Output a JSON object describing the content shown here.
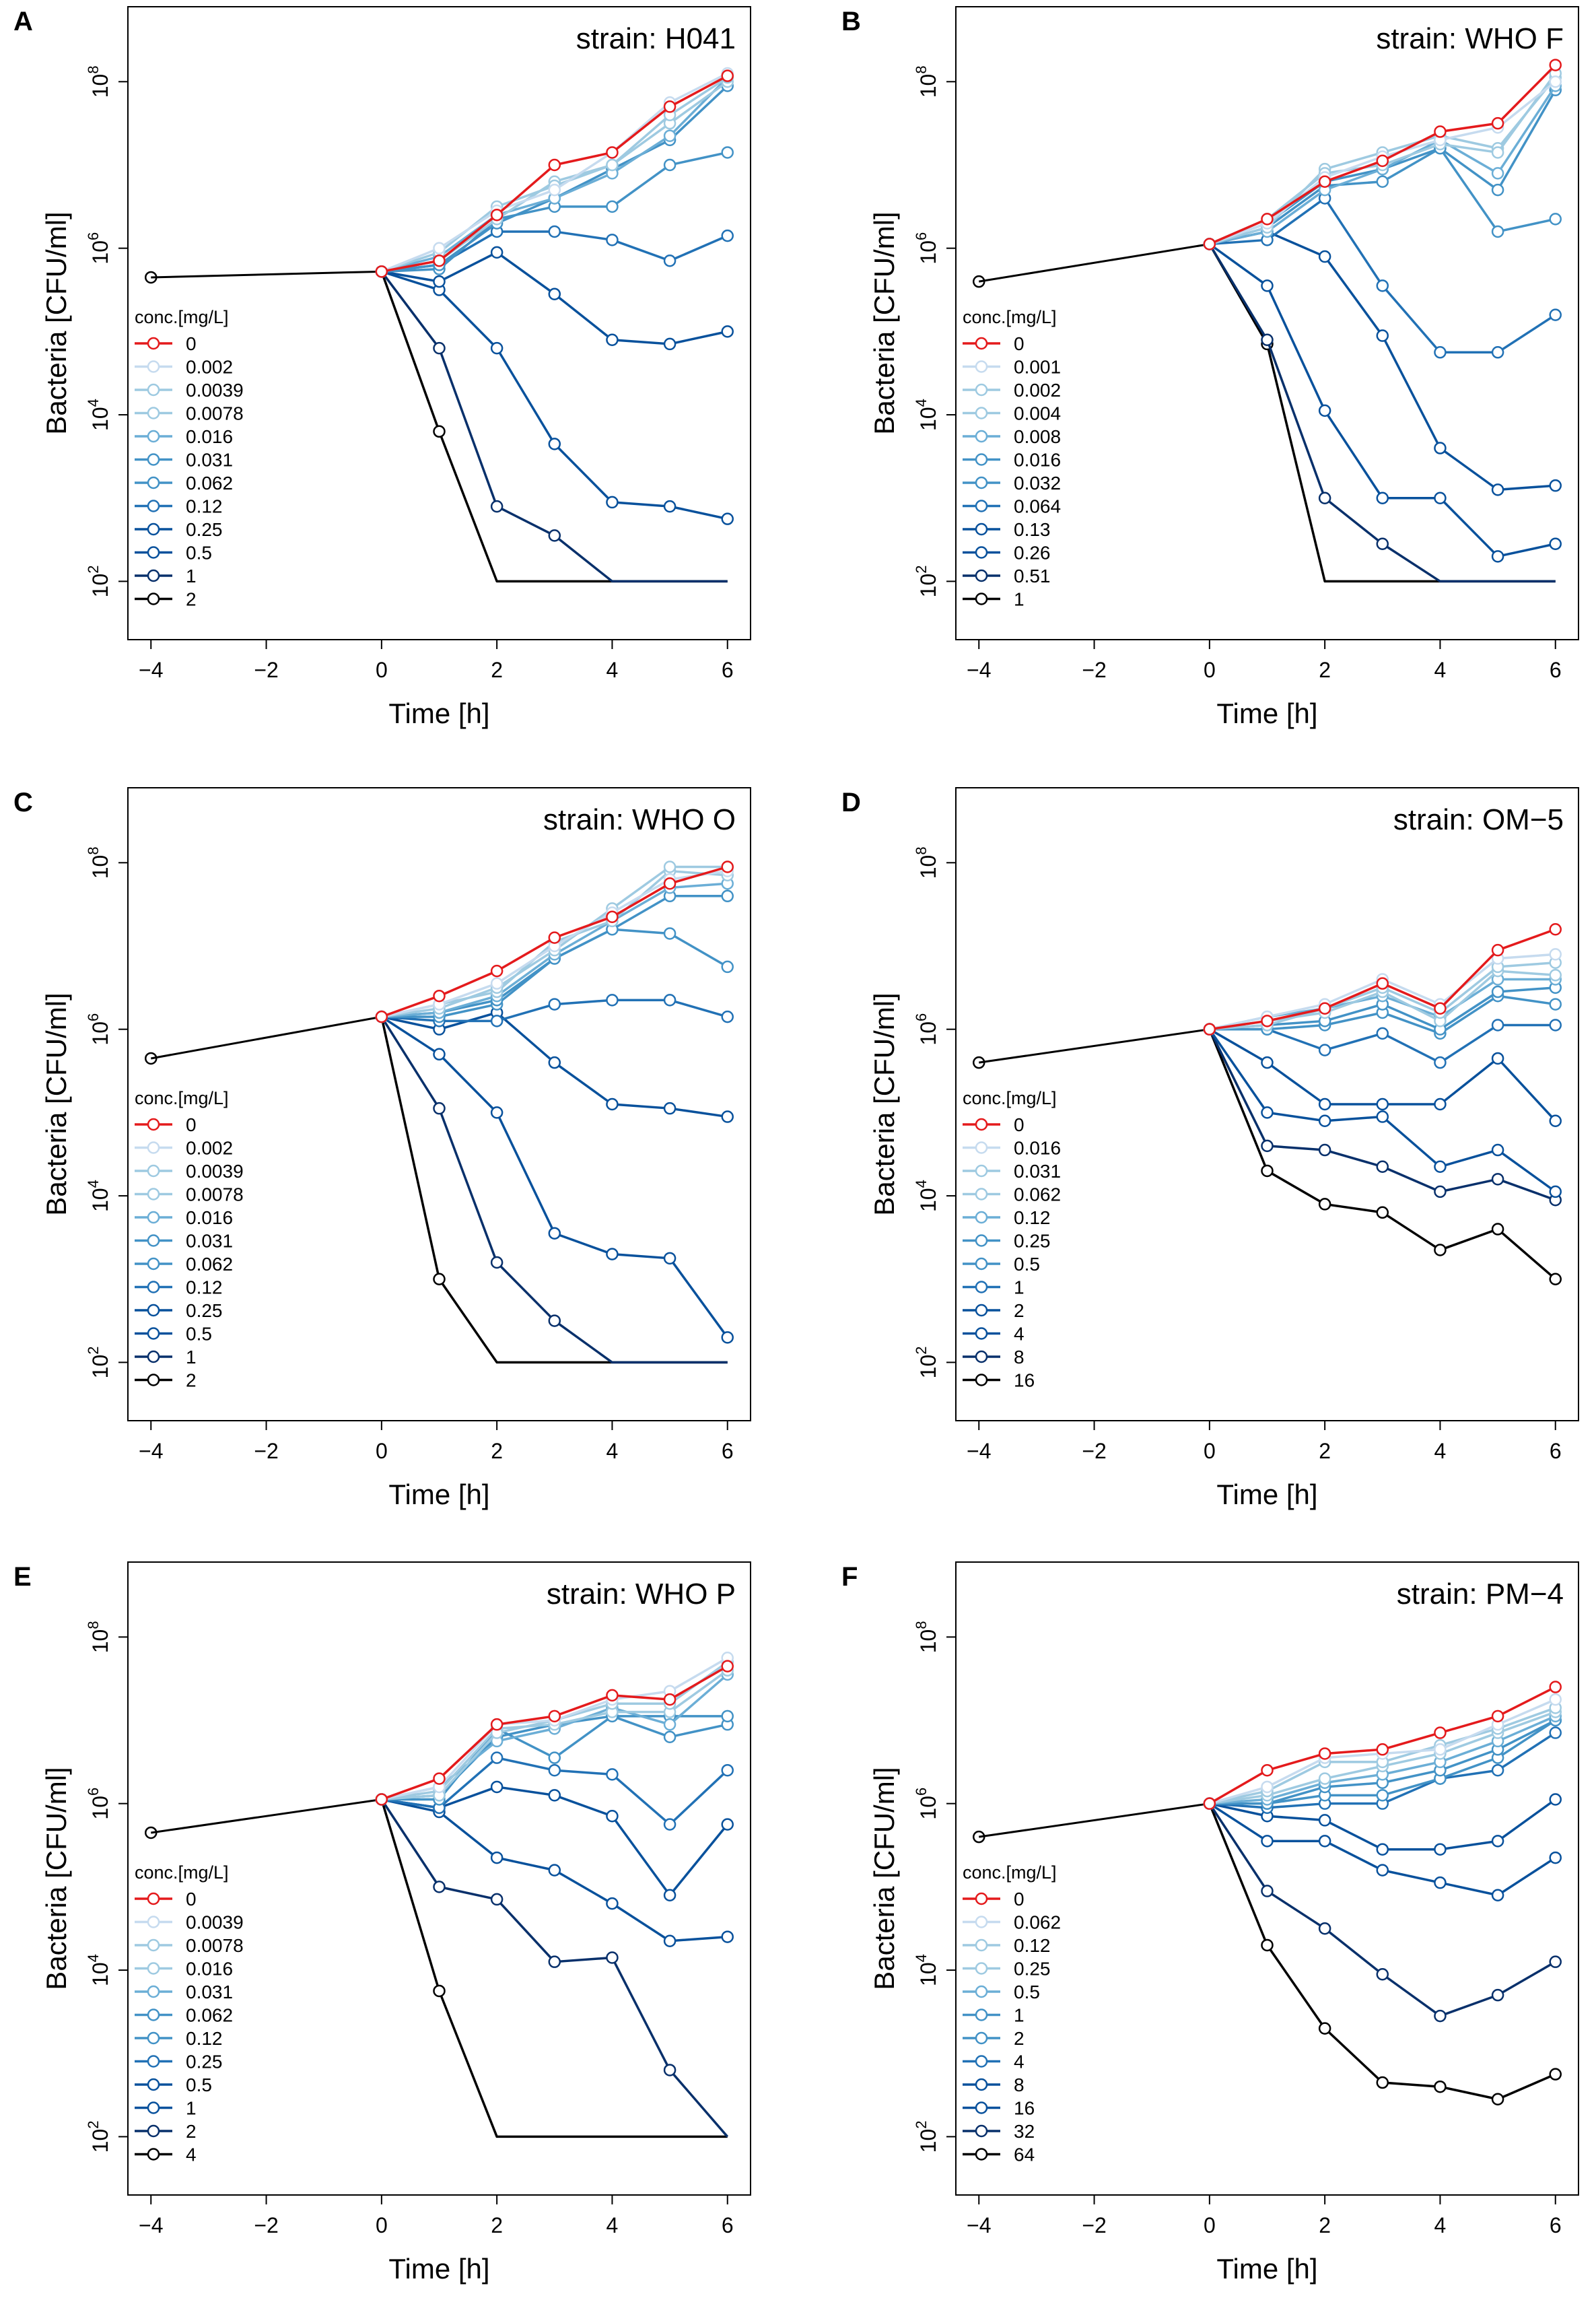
{
  "figure": {
    "common": {
      "type": "line",
      "xlabel": "Time [h]",
      "ylabel": "Bacteria [CFU/ml]",
      "legend_title": "conc.[mg/L]",
      "xlim": [
        -4.4,
        6.4
      ],
      "ylim_log10": [
        1.3,
        8.9
      ],
      "xticks": [
        -4,
        -2,
        0,
        2,
        4,
        6
      ],
      "xtick_labels": [
        "−4",
        "−2",
        "0",
        "2",
        "4",
        "6"
      ],
      "yticks_log10": [
        2,
        4,
        6,
        8
      ],
      "ytick_base": "10",
      "ytick_exponents": [
        "2",
        "4",
        "6",
        "8"
      ],
      "x": [
        0,
        1,
        2,
        3,
        4,
        5,
        6
      ],
      "baseline": {
        "x": [
          -4,
          0
        ],
        "log10": [
          5.6,
          5.7
        ]
      },
      "detection_limit_log10": 2
    },
    "colors": {
      "growth_control": "#e41a1c",
      "highest_conc": "#000000",
      "blue_ramp": [
        "#c6dbef",
        "#9ecae1",
        "#6baed6",
        "#4292c6",
        "#2171b5",
        "#08519c",
        "#08306b"
      ]
    },
    "chart_data": [
      {
        "panel": "A",
        "title": "strain: H041",
        "baseline_log10": [
          5.65,
          5.72
        ],
        "concentrations": [
          "0",
          "0.002",
          "0.0039",
          "0.0078",
          "0.016",
          "0.031",
          "0.062",
          "0.12",
          "0.25",
          "0.5",
          "1",
          "2"
        ],
        "series": [
          {
            "name": "0",
            "log10": [
              5.72,
              5.85,
              6.4,
              7.0,
              7.15,
              7.7,
              8.07
            ]
          },
          {
            "name": "0.002",
            "log10": [
              5.72,
              6.0,
              6.45,
              6.7,
              7.15,
              7.75,
              8.1
            ]
          },
          {
            "name": "0.0039",
            "log10": [
              5.72,
              5.95,
              6.5,
              6.75,
              7.0,
              7.6,
              8.05
            ]
          },
          {
            "name": "0.0078",
            "log10": [
              5.72,
              5.85,
              6.35,
              6.8,
              7.0,
              7.5,
              8.0
            ]
          },
          {
            "name": "0.016",
            "log10": [
              5.72,
              5.9,
              6.4,
              6.6,
              6.9,
              7.35,
              8.05
            ]
          },
          {
            "name": "0.031",
            "log10": [
              5.72,
              5.8,
              6.3,
              6.6,
              6.95,
              7.3,
              7.95
            ]
          },
          {
            "name": "0.062",
            "log10": [
              5.72,
              5.75,
              6.35,
              6.5,
              6.5,
              7.0,
              7.15
            ]
          },
          {
            "name": "0.12",
            "log10": [
              5.72,
              5.8,
              6.2,
              6.2,
              6.1,
              5.85,
              6.15
            ]
          },
          {
            "name": "0.25",
            "log10": [
              5.72,
              5.6,
              5.95,
              5.45,
              4.9,
              4.85,
              5.0
            ]
          },
          {
            "name": "0.5",
            "log10": [
              5.72,
              5.5,
              4.8,
              3.65,
              2.95,
              2.9,
              2.75
            ]
          },
          {
            "name": "1",
            "log10": [
              5.72,
              4.8,
              2.9,
              2.55,
              2.0,
              2.0,
              2.0
            ]
          },
          {
            "name": "2",
            "log10": [
              5.72,
              3.8,
              2.0,
              2.0,
              2.0,
              2.0,
              2.0
            ]
          }
        ]
      },
      {
        "panel": "B",
        "title": "strain: WHO F",
        "baseline_log10": [
          5.6,
          6.05
        ],
        "concentrations": [
          "0",
          "0.001",
          "0.002",
          "0.004",
          "0.008",
          "0.016",
          "0.032",
          "0.064",
          "0.13",
          "0.26",
          "0.51",
          "1"
        ],
        "series": [
          {
            "name": "0",
            "log10": [
              6.05,
              6.35,
              6.8,
              7.05,
              7.4,
              7.5,
              8.2
            ]
          },
          {
            "name": "0.001",
            "log10": [
              6.05,
              6.3,
              6.85,
              7.1,
              7.3,
              7.45,
              8.0
            ]
          },
          {
            "name": "0.002",
            "log10": [
              6.05,
              6.35,
              6.9,
              7.0,
              7.25,
              7.15,
              8.1
            ]
          },
          {
            "name": "0.004",
            "log10": [
              6.05,
              6.25,
              6.95,
              7.15,
              7.35,
              7.2,
              8.05
            ]
          },
          {
            "name": "0.008",
            "log10": [
              6.05,
              6.2,
              6.7,
              6.95,
              7.3,
              6.9,
              7.95
            ]
          },
          {
            "name": "0.016",
            "log10": [
              6.05,
              6.3,
              6.8,
              6.95,
              7.2,
              6.7,
              7.9
            ]
          },
          {
            "name": "0.032",
            "log10": [
              6.05,
              6.25,
              6.75,
              6.8,
              7.2,
              6.2,
              6.35
            ]
          },
          {
            "name": "0.064",
            "log10": [
              6.05,
              6.1,
              6.6,
              5.55,
              4.75,
              4.75,
              5.2
            ]
          },
          {
            "name": "0.13",
            "log10": [
              6.05,
              6.2,
              5.9,
              4.95,
              3.6,
              3.1,
              3.15
            ]
          },
          {
            "name": "0.26",
            "log10": [
              6.05,
              5.55,
              4.05,
              3.0,
              3.0,
              2.3,
              2.45
            ]
          },
          {
            "name": "0.51",
            "log10": [
              6.05,
              4.9,
              3.0,
              2.45,
              2.0,
              2.0,
              2.0
            ]
          },
          {
            "name": "1",
            "log10": [
              6.05,
              4.85,
              2.0,
              2.0,
              2.0,
              2.0,
              2.0
            ]
          }
        ]
      },
      {
        "panel": "C",
        "title": "strain: WHO O",
        "baseline_log10": [
          5.65,
          6.15
        ],
        "concentrations": [
          "0",
          "0.002",
          "0.0039",
          "0.0078",
          "0.016",
          "0.031",
          "0.062",
          "0.12",
          "0.25",
          "0.5",
          "1",
          "2"
        ],
        "series": [
          {
            "name": "0",
            "log10": [
              6.15,
              6.4,
              6.7,
              7.1,
              7.35,
              7.75,
              7.95
            ]
          },
          {
            "name": "0.002",
            "log10": [
              6.15,
              6.3,
              6.55,
              7.0,
              7.4,
              7.8,
              7.9
            ]
          },
          {
            "name": "0.0039",
            "log10": [
              6.15,
              6.25,
              6.5,
              6.95,
              7.45,
              7.95,
              7.95
            ]
          },
          {
            "name": "0.0078",
            "log10": [
              6.15,
              6.3,
              6.45,
              7.05,
              7.3,
              7.9,
              7.85
            ]
          },
          {
            "name": "0.016",
            "log10": [
              6.15,
              6.2,
              6.4,
              6.9,
              7.3,
              7.7,
              7.75
            ]
          },
          {
            "name": "0.031",
            "log10": [
              6.15,
              6.2,
              6.35,
              6.85,
              7.2,
              7.6,
              7.6
            ]
          },
          {
            "name": "0.062",
            "log10": [
              6.15,
              6.15,
              6.3,
              6.85,
              7.2,
              7.15,
              6.75
            ]
          },
          {
            "name": "0.12",
            "log10": [
              6.15,
              6.1,
              6.1,
              6.3,
              6.35,
              6.35,
              6.15
            ]
          },
          {
            "name": "0.25",
            "log10": [
              6.15,
              6.0,
              6.2,
              5.6,
              5.1,
              5.05,
              4.95
            ]
          },
          {
            "name": "0.5",
            "log10": [
              6.15,
              5.7,
              5.0,
              3.55,
              3.3,
              3.25,
              2.3
            ]
          },
          {
            "name": "1",
            "log10": [
              6.15,
              5.05,
              3.2,
              2.5,
              2.0,
              2.0,
              2.0
            ]
          },
          {
            "name": "2",
            "log10": [
              6.15,
              3.0,
              2.0,
              2.0,
              2.0,
              2.0,
              2.0
            ]
          }
        ]
      },
      {
        "panel": "D",
        "title": "strain: OM−5",
        "baseline_log10": [
          5.6,
          6.0
        ],
        "concentrations": [
          "0",
          "0.016",
          "0.031",
          "0.062",
          "0.12",
          "0.25",
          "0.5",
          "1",
          "2",
          "4",
          "8",
          "16"
        ],
        "series": [
          {
            "name": "0",
            "log10": [
              6.0,
              6.1,
              6.25,
              6.55,
              6.25,
              6.95,
              7.2
            ]
          },
          {
            "name": "0.016",
            "log10": [
              6.0,
              6.15,
              6.3,
              6.6,
              6.3,
              6.85,
              6.9
            ]
          },
          {
            "name": "0.031",
            "log10": [
              6.0,
              6.05,
              6.25,
              6.5,
              6.2,
              6.75,
              6.8
            ]
          },
          {
            "name": "0.062",
            "log10": [
              6.0,
              6.1,
              6.2,
              6.45,
              6.1,
              6.7,
              6.65
            ]
          },
          {
            "name": "0.12",
            "log10": [
              6.0,
              6.15,
              6.25,
              6.4,
              6.15,
              6.6,
              6.6
            ]
          },
          {
            "name": "0.25",
            "log10": [
              6.0,
              6.05,
              6.1,
              6.3,
              6.0,
              6.45,
              6.5
            ]
          },
          {
            "name": "0.5",
            "log10": [
              6.0,
              6.0,
              6.05,
              6.2,
              5.95,
              6.4,
              6.3
            ]
          },
          {
            "name": "1",
            "log10": [
              6.0,
              6.0,
              5.75,
              5.95,
              5.6,
              6.05,
              6.05
            ]
          },
          {
            "name": "2",
            "log10": [
              6.0,
              5.6,
              5.1,
              5.1,
              5.1,
              5.65,
              4.9
            ]
          },
          {
            "name": "4",
            "log10": [
              6.0,
              5.0,
              4.9,
              4.95,
              4.35,
              4.55,
              4.05
            ]
          },
          {
            "name": "8",
            "log10": [
              6.0,
              4.6,
              4.55,
              4.35,
              4.05,
              4.2,
              3.95
            ]
          },
          {
            "name": "16",
            "log10": [
              6.0,
              4.3,
              3.9,
              3.8,
              3.35,
              3.6,
              3.0
            ]
          }
        ]
      },
      {
        "panel": "E",
        "title": "strain: WHO P",
        "baseline_log10": [
          5.65,
          6.05
        ],
        "concentrations": [
          "0",
          "0.0039",
          "0.0078",
          "0.016",
          "0.031",
          "0.062",
          "0.12",
          "0.25",
          "0.5",
          "1",
          "2",
          "4"
        ],
        "series": [
          {
            "name": "0",
            "log10": [
              6.05,
              6.3,
              6.95,
              7.05,
              7.3,
              7.25,
              7.65
            ]
          },
          {
            "name": "0.0039",
            "log10": [
              6.05,
              6.2,
              6.95,
              7.0,
              7.25,
              7.35,
              7.75
            ]
          },
          {
            "name": "0.0078",
            "log10": [
              6.05,
              6.1,
              6.85,
              7.0,
              7.2,
              7.2,
              7.7
            ]
          },
          {
            "name": "0.016",
            "log10": [
              6.05,
              6.15,
              6.9,
              6.95,
              7.1,
              7.1,
              7.6
            ]
          },
          {
            "name": "0.031",
            "log10": [
              6.05,
              6.2,
              6.75,
              6.9,
              7.15,
              6.95,
              7.55
            ]
          },
          {
            "name": "0.062",
            "log10": [
              6.05,
              6.1,
              6.8,
              6.95,
              7.05,
              7.05,
              7.05
            ]
          },
          {
            "name": "0.12",
            "log10": [
              6.05,
              6.05,
              6.9,
              6.55,
              7.05,
              6.8,
              6.95
            ]
          },
          {
            "name": "0.25",
            "log10": [
              6.05,
              5.95,
              6.55,
              6.4,
              6.35,
              5.75,
              6.4
            ]
          },
          {
            "name": "0.5",
            "log10": [
              6.05,
              5.95,
              6.2,
              6.1,
              5.85,
              4.9,
              5.75
            ]
          },
          {
            "name": "1",
            "log10": [
              6.05,
              5.9,
              5.35,
              5.2,
              4.8,
              4.35,
              4.4
            ]
          },
          {
            "name": "2",
            "log10": [
              6.05,
              5.0,
              4.85,
              4.1,
              4.15,
              2.8,
              2.0
            ]
          },
          {
            "name": "4",
            "log10": [
              6.05,
              3.75,
              2.0,
              2.0,
              2.0,
              2.0,
              2.0
            ]
          }
        ]
      },
      {
        "panel": "F",
        "title": "strain: PM−4",
        "baseline_log10": [
          5.6,
          6.0
        ],
        "concentrations": [
          "0",
          "0.062",
          "0.12",
          "0.25",
          "0.5",
          "1",
          "2",
          "4",
          "8",
          "16",
          "32",
          "64"
        ],
        "series": [
          {
            "name": "0",
            "log10": [
              6.0,
              6.4,
              6.6,
              6.65,
              6.85,
              7.05,
              7.4
            ]
          },
          {
            "name": "0.062",
            "log10": [
              6.0,
              6.2,
              6.55,
              6.6,
              6.65,
              6.95,
              7.25
            ]
          },
          {
            "name": "0.12",
            "log10": [
              6.0,
              6.15,
              6.5,
              6.5,
              6.7,
              6.9,
              7.15
            ]
          },
          {
            "name": "0.25",
            "log10": [
              6.0,
              6.1,
              6.3,
              6.45,
              6.6,
              6.85,
              7.1
            ]
          },
          {
            "name": "0.5",
            "log10": [
              6.0,
              6.05,
              6.25,
              6.35,
              6.5,
              6.75,
              7.05
            ]
          },
          {
            "name": "1",
            "log10": [
              6.0,
              6.0,
              6.2,
              6.25,
              6.4,
              6.65,
              7.0
            ]
          },
          {
            "name": "2",
            "log10": [
              6.0,
              6.0,
              6.1,
              6.1,
              6.3,
              6.55,
              7.0
            ]
          },
          {
            "name": "4",
            "log10": [
              6.0,
              5.95,
              6.0,
              6.0,
              6.3,
              6.4,
              6.85
            ]
          },
          {
            "name": "8",
            "log10": [
              6.0,
              5.85,
              5.8,
              5.45,
              5.45,
              5.55,
              6.05
            ]
          },
          {
            "name": "16",
            "log10": [
              6.0,
              5.55,
              5.55,
              5.2,
              5.05,
              4.9,
              5.35
            ]
          },
          {
            "name": "32",
            "log10": [
              6.0,
              4.95,
              4.5,
              3.95,
              3.45,
              3.7,
              4.1
            ]
          },
          {
            "name": "64",
            "log10": [
              6.0,
              4.3,
              3.3,
              2.65,
              2.6,
              2.45,
              2.75
            ]
          }
        ]
      }
    ]
  }
}
